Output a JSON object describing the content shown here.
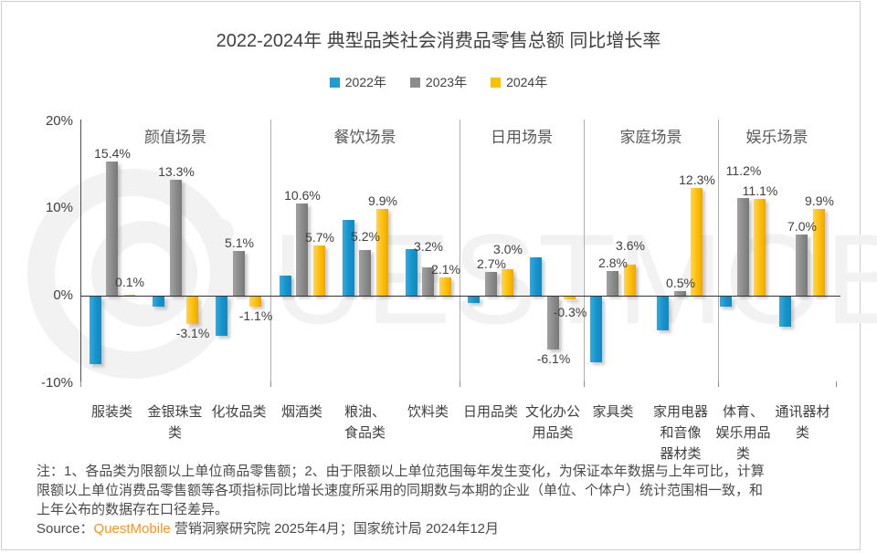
{
  "title": "2022-2024年 典型品类社会消费品零售总额 同比增长率",
  "legend": [
    {
      "label": "2022年",
      "color": "#1E9CD7"
    },
    {
      "label": "2023年",
      "color": "#8C8C8C"
    },
    {
      "label": "2024年",
      "color": "#FFC000"
    }
  ],
  "watermark": {
    "text": "QUESTMOBILE"
  },
  "y_axis": {
    "tick_labels": [
      "20%",
      "10%",
      "0%",
      "-10%"
    ],
    "tick_values": [
      20,
      10,
      0,
      -10
    ]
  },
  "chart_data": {
    "type": "bar",
    "title": "2022-2024年 典型品类社会消费品零售总额 同比增长率",
    "ylim": [
      -10,
      20
    ],
    "grid": false,
    "legend_position": "top-center",
    "series_names": [
      "2022年",
      "2023年",
      "2024年"
    ],
    "series_colors": [
      "#1E9CD7",
      "#8C8C8C",
      "#FFC000"
    ],
    "groups": [
      {
        "scene": "颜值场景",
        "categories": [
          {
            "name": "服装类",
            "label_lines": "服装类",
            "values": [
              -7.7,
              15.4,
              0.1
            ],
            "data_labels": [
              null,
              "15.4%",
              "0.1%"
            ]
          },
          {
            "name": "金银珠宝类",
            "label_lines": "金银珠宝\n类",
            "values": [
              -1.1,
              13.3,
              -3.1
            ],
            "data_labels": [
              null,
              "13.3%",
              "-3.1%"
            ]
          },
          {
            "name": "化妆品类",
            "label_lines": "化妆品类",
            "values": [
              -4.5,
              5.1,
              -1.1
            ],
            "data_labels": [
              null,
              "5.1%",
              "-1.1%"
            ]
          }
        ]
      },
      {
        "scene": "餐饮场景",
        "categories": [
          {
            "name": "烟酒类",
            "label_lines": "烟酒类",
            "values": [
              2.3,
              10.6,
              5.7
            ],
            "data_labels": [
              null,
              "10.6%",
              "5.7%"
            ]
          },
          {
            "name": "粮油、食品类",
            "label_lines": "粮油、\n食品类",
            "values": [
              8.7,
              5.2,
              9.9
            ],
            "data_labels": [
              null,
              "5.2%",
              "9.9%"
            ]
          },
          {
            "name": "饮料类",
            "label_lines": "饮料类",
            "values": [
              5.3,
              3.2,
              2.1
            ],
            "data_labels": [
              null,
              "3.2%",
              "2.1%"
            ]
          }
        ]
      },
      {
        "scene": "日用场景",
        "categories": [
          {
            "name": "日用品类",
            "label_lines": "日用品类",
            "values": [
              -0.7,
              2.7,
              3.0
            ],
            "data_labels": [
              null,
              "2.7%",
              "3.0%"
            ]
          },
          {
            "name": "文化办公用品类",
            "label_lines": "文化办公\n用品类",
            "values": [
              4.4,
              -6.1,
              -0.3
            ],
            "data_labels": [
              null,
              "-6.1%",
              "-0.3%"
            ]
          }
        ]
      },
      {
        "scene": "家庭场景",
        "categories": [
          {
            "name": "家具类",
            "label_lines": "家具类",
            "values": [
              -7.5,
              2.8,
              3.6
            ],
            "data_labels": [
              null,
              "2.8%",
              "3.6%"
            ]
          },
          {
            "name": "家用电器和音像器材类",
            "label_lines": "家用电器\n和音像\n器材类",
            "values": [
              -3.9,
              0.5,
              12.3
            ],
            "data_labels": [
              null,
              "0.5%",
              "12.3%"
            ]
          }
        ]
      },
      {
        "scene": "娱乐场景",
        "categories": [
          {
            "name": "体育、娱乐用品类",
            "label_lines": "体育、\n娱乐用品\n类",
            "values": [
              -1.2,
              11.2,
              11.1
            ],
            "data_labels": [
              null,
              "11.2%",
              "11.1%"
            ]
          },
          {
            "name": "通讯器材类",
            "label_lines": "通讯器材\n类",
            "values": [
              -3.4,
              7.0,
              9.9
            ],
            "data_labels": [
              null,
              "7.0%",
              "9.9%"
            ]
          }
        ]
      }
    ]
  },
  "notes_lines": [
    "注：1、各品类为限额以上单位商品零售额；2、由于限额以上单位范围每年发生变化，为保证本年数据与上年可比，计算",
    "限额以上单位消费品零售额等各项指标同比增长速度所采用的同期数与本期的企业（单位、个体户）统计范围相一致，和",
    "上年公布的数据存在口径差异。"
  ],
  "source": {
    "prefix": "Source：",
    "brand": "QuestMobile",
    "suffix": " 营销洞察研究院 2025年4月；国家统计局 2024年12月"
  }
}
